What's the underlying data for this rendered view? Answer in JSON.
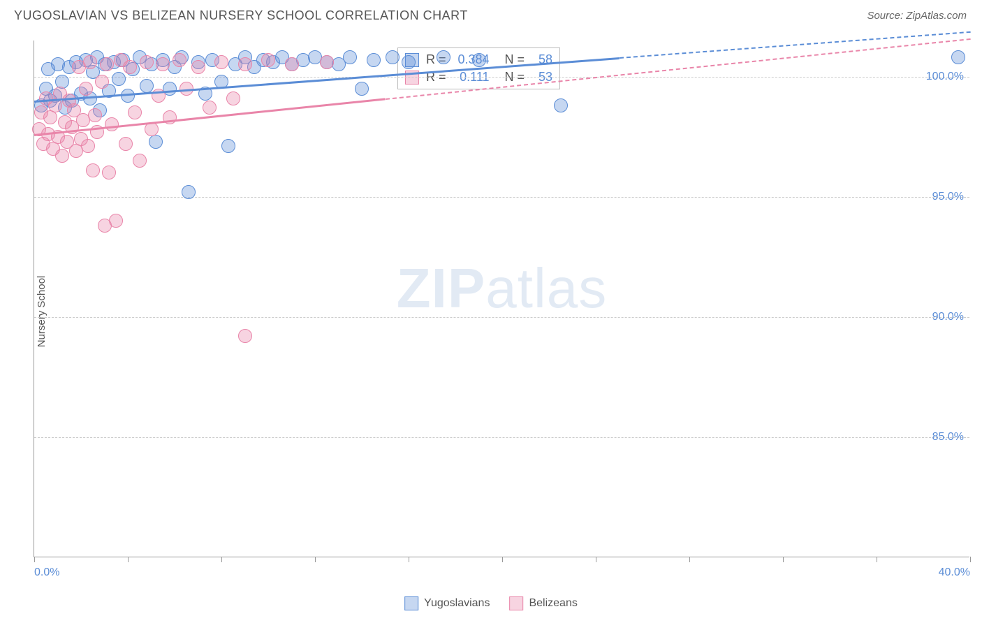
{
  "title": "YUGOSLAVIAN VS BELIZEAN NURSERY SCHOOL CORRELATION CHART",
  "source": "Source: ZipAtlas.com",
  "y_axis_label": "Nursery School",
  "watermark_bold": "ZIP",
  "watermark_light": "atlas",
  "chart": {
    "type": "scatter",
    "x_min": 0.0,
    "x_max": 40.0,
    "y_min": 80.0,
    "y_max": 101.5,
    "x_ticks": [
      0,
      4,
      8,
      12,
      16,
      20,
      24,
      28,
      32,
      36,
      40
    ],
    "x_tick_labels": {
      "0": "0.0%",
      "40": "40.0%"
    },
    "y_ticks": [
      85.0,
      90.0,
      95.0,
      100.0
    ],
    "y_tick_labels": [
      "85.0%",
      "90.0%",
      "95.0%",
      "100.0%"
    ],
    "grid_color": "#cccccc",
    "background_color": "#ffffff",
    "point_radius": 10,
    "point_opacity": 0.55,
    "series": [
      {
        "name": "Yugoslavians",
        "color": "#5b8dd6",
        "fill": "rgba(91,141,214,0.35)",
        "stroke": "#5b8dd6",
        "R": "0.384",
        "N": "58",
        "trend": {
          "x1": 0,
          "y1": 99.0,
          "x2": 25,
          "y2": 100.8,
          "dash_to_x": 40
        },
        "points": [
          [
            0.3,
            98.8
          ],
          [
            0.5,
            99.5
          ],
          [
            0.6,
            100.3
          ],
          [
            0.7,
            99.0
          ],
          [
            0.9,
            99.2
          ],
          [
            1.0,
            100.5
          ],
          [
            1.2,
            99.8
          ],
          [
            1.3,
            98.7
          ],
          [
            1.5,
            100.4
          ],
          [
            1.6,
            99.0
          ],
          [
            1.8,
            100.6
          ],
          [
            2.0,
            99.3
          ],
          [
            2.2,
            100.7
          ],
          [
            2.4,
            99.1
          ],
          [
            2.5,
            100.2
          ],
          [
            2.7,
            100.8
          ],
          [
            2.8,
            98.6
          ],
          [
            3.0,
            100.5
          ],
          [
            3.2,
            99.4
          ],
          [
            3.4,
            100.6
          ],
          [
            3.6,
            99.9
          ],
          [
            3.8,
            100.7
          ],
          [
            4.0,
            99.2
          ],
          [
            4.2,
            100.3
          ],
          [
            4.5,
            100.8
          ],
          [
            4.8,
            99.6
          ],
          [
            5.0,
            100.5
          ],
          [
            5.2,
            97.3
          ],
          [
            5.5,
            100.7
          ],
          [
            5.8,
            99.5
          ],
          [
            6.0,
            100.4
          ],
          [
            6.3,
            100.8
          ],
          [
            6.6,
            95.2
          ],
          [
            7.0,
            100.6
          ],
          [
            7.3,
            99.3
          ],
          [
            7.6,
            100.7
          ],
          [
            8.0,
            99.8
          ],
          [
            8.3,
            97.1
          ],
          [
            8.6,
            100.5
          ],
          [
            9.0,
            100.8
          ],
          [
            9.4,
            100.4
          ],
          [
            9.8,
            100.7
          ],
          [
            10.2,
            100.6
          ],
          [
            10.6,
            100.8
          ],
          [
            11.0,
            100.5
          ],
          [
            11.5,
            100.7
          ],
          [
            12.0,
            100.8
          ],
          [
            12.5,
            100.6
          ],
          [
            13.0,
            100.5
          ],
          [
            13.5,
            100.8
          ],
          [
            14.0,
            99.5
          ],
          [
            14.5,
            100.7
          ],
          [
            15.3,
            100.8
          ],
          [
            16.0,
            100.6
          ],
          [
            17.5,
            100.8
          ],
          [
            19.0,
            100.7
          ],
          [
            22.5,
            98.8
          ],
          [
            39.5,
            100.8
          ]
        ]
      },
      {
        "name": "Belizeans",
        "color": "#e985a9",
        "fill": "rgba(233,133,169,0.35)",
        "stroke": "#e985a9",
        "R": "0.111",
        "N": "53",
        "trend": {
          "x1": 0,
          "y1": 97.6,
          "x2": 15,
          "y2": 99.1,
          "dash_to_x": 40
        },
        "points": [
          [
            0.2,
            97.8
          ],
          [
            0.3,
            98.5
          ],
          [
            0.4,
            97.2
          ],
          [
            0.5,
            99.1
          ],
          [
            0.6,
            97.6
          ],
          [
            0.7,
            98.3
          ],
          [
            0.8,
            97.0
          ],
          [
            0.9,
            98.8
          ],
          [
            1.0,
            97.5
          ],
          [
            1.1,
            99.3
          ],
          [
            1.2,
            96.7
          ],
          [
            1.3,
            98.1
          ],
          [
            1.4,
            97.3
          ],
          [
            1.5,
            99.0
          ],
          [
            1.6,
            97.9
          ],
          [
            1.7,
            98.6
          ],
          [
            1.8,
            96.9
          ],
          [
            1.9,
            100.4
          ],
          [
            2.0,
            97.4
          ],
          [
            2.1,
            98.2
          ],
          [
            2.2,
            99.5
          ],
          [
            2.3,
            97.1
          ],
          [
            2.4,
            100.6
          ],
          [
            2.5,
            96.1
          ],
          [
            2.6,
            98.4
          ],
          [
            2.7,
            97.7
          ],
          [
            2.9,
            99.8
          ],
          [
            3.0,
            93.8
          ],
          [
            3.1,
            100.5
          ],
          [
            3.2,
            96.0
          ],
          [
            3.3,
            98.0
          ],
          [
            3.5,
            94.0
          ],
          [
            3.7,
            100.7
          ],
          [
            3.9,
            97.2
          ],
          [
            4.1,
            100.4
          ],
          [
            4.3,
            98.5
          ],
          [
            4.5,
            96.5
          ],
          [
            4.8,
            100.6
          ],
          [
            5.0,
            97.8
          ],
          [
            5.3,
            99.2
          ],
          [
            5.5,
            100.5
          ],
          [
            5.8,
            98.3
          ],
          [
            6.2,
            100.7
          ],
          [
            6.5,
            99.5
          ],
          [
            7.0,
            100.4
          ],
          [
            7.5,
            98.7
          ],
          [
            8.0,
            100.6
          ],
          [
            8.5,
            99.1
          ],
          [
            9.0,
            100.5
          ],
          [
            9.0,
            89.2
          ],
          [
            10.0,
            100.7
          ],
          [
            11.0,
            100.5
          ],
          [
            12.5,
            100.6
          ]
        ]
      }
    ]
  },
  "legend": {
    "items": [
      {
        "label": "Yugoslavians",
        "fill": "rgba(91,141,214,0.35)",
        "stroke": "#5b8dd6"
      },
      {
        "label": "Belizeans",
        "fill": "rgba(233,133,169,0.35)",
        "stroke": "#e985a9"
      }
    ]
  }
}
